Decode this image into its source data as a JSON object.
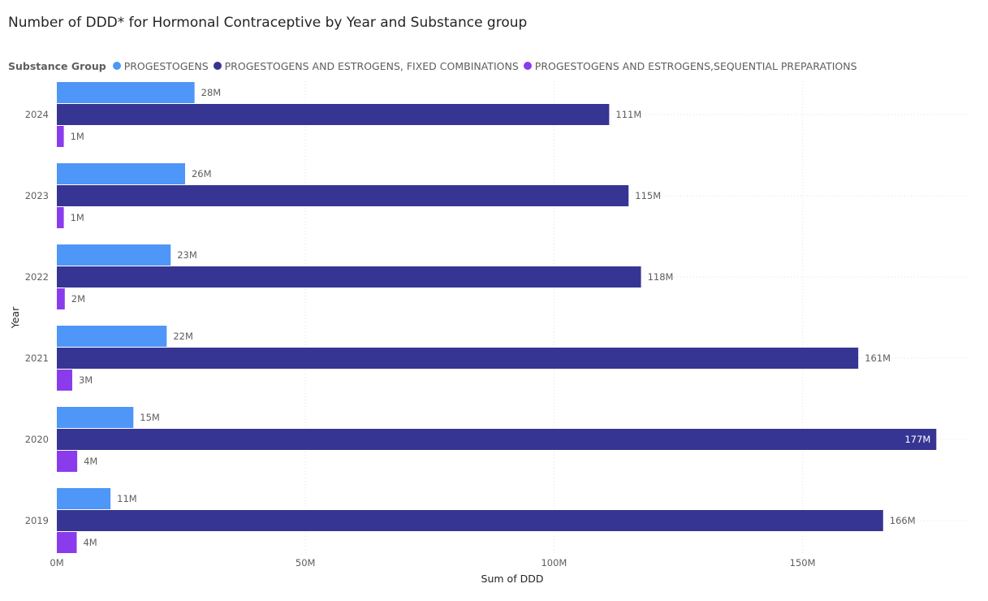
{
  "chart_data": {
    "type": "bar",
    "orientation": "horizontal",
    "title": "Number of DDD* for Hormonal Contraceptive by Year and Substance group",
    "legend_title": "Substance Group",
    "legend_position": "top-left",
    "xlabel": "Sum of DDD",
    "ylabel": "Year",
    "xlim": [
      0,
      180
    ],
    "x_ticks": [
      0,
      50,
      100,
      150
    ],
    "x_tick_labels": [
      "0M",
      "50M",
      "100M",
      "150M"
    ],
    "grid": true,
    "categories": [
      "2024",
      "2023",
      "2022",
      "2021",
      "2020",
      "2019"
    ],
    "series": [
      {
        "name": "PROGESTOGENS",
        "color": "#4e96f7",
        "values": [
          27.7,
          25.8,
          22.9,
          22.1,
          15.4,
          10.8
        ],
        "labels": [
          "28M",
          "26M",
          "23M",
          "22M",
          "15M",
          "11M"
        ]
      },
      {
        "name": "PROGESTOGENS AND ESTROGENS, FIXED COMBINATIONS",
        "color": "#363593",
        "values": [
          111.1,
          115.0,
          117.5,
          161.2,
          176.9,
          166.2
        ],
        "labels": [
          "111M",
          "115M",
          "118M",
          "161M",
          "177M",
          "166M"
        ]
      },
      {
        "name": "PROGESTOGENS AND ESTROGENS,SEQUENTIAL PREPARATIONS",
        "color": "#8a3cec",
        "values": [
          1.4,
          1.4,
          1.6,
          3.1,
          4.1,
          4.0
        ],
        "labels": [
          "1M",
          "1M",
          "2M",
          "3M",
          "4M",
          "4M"
        ]
      }
    ]
  }
}
